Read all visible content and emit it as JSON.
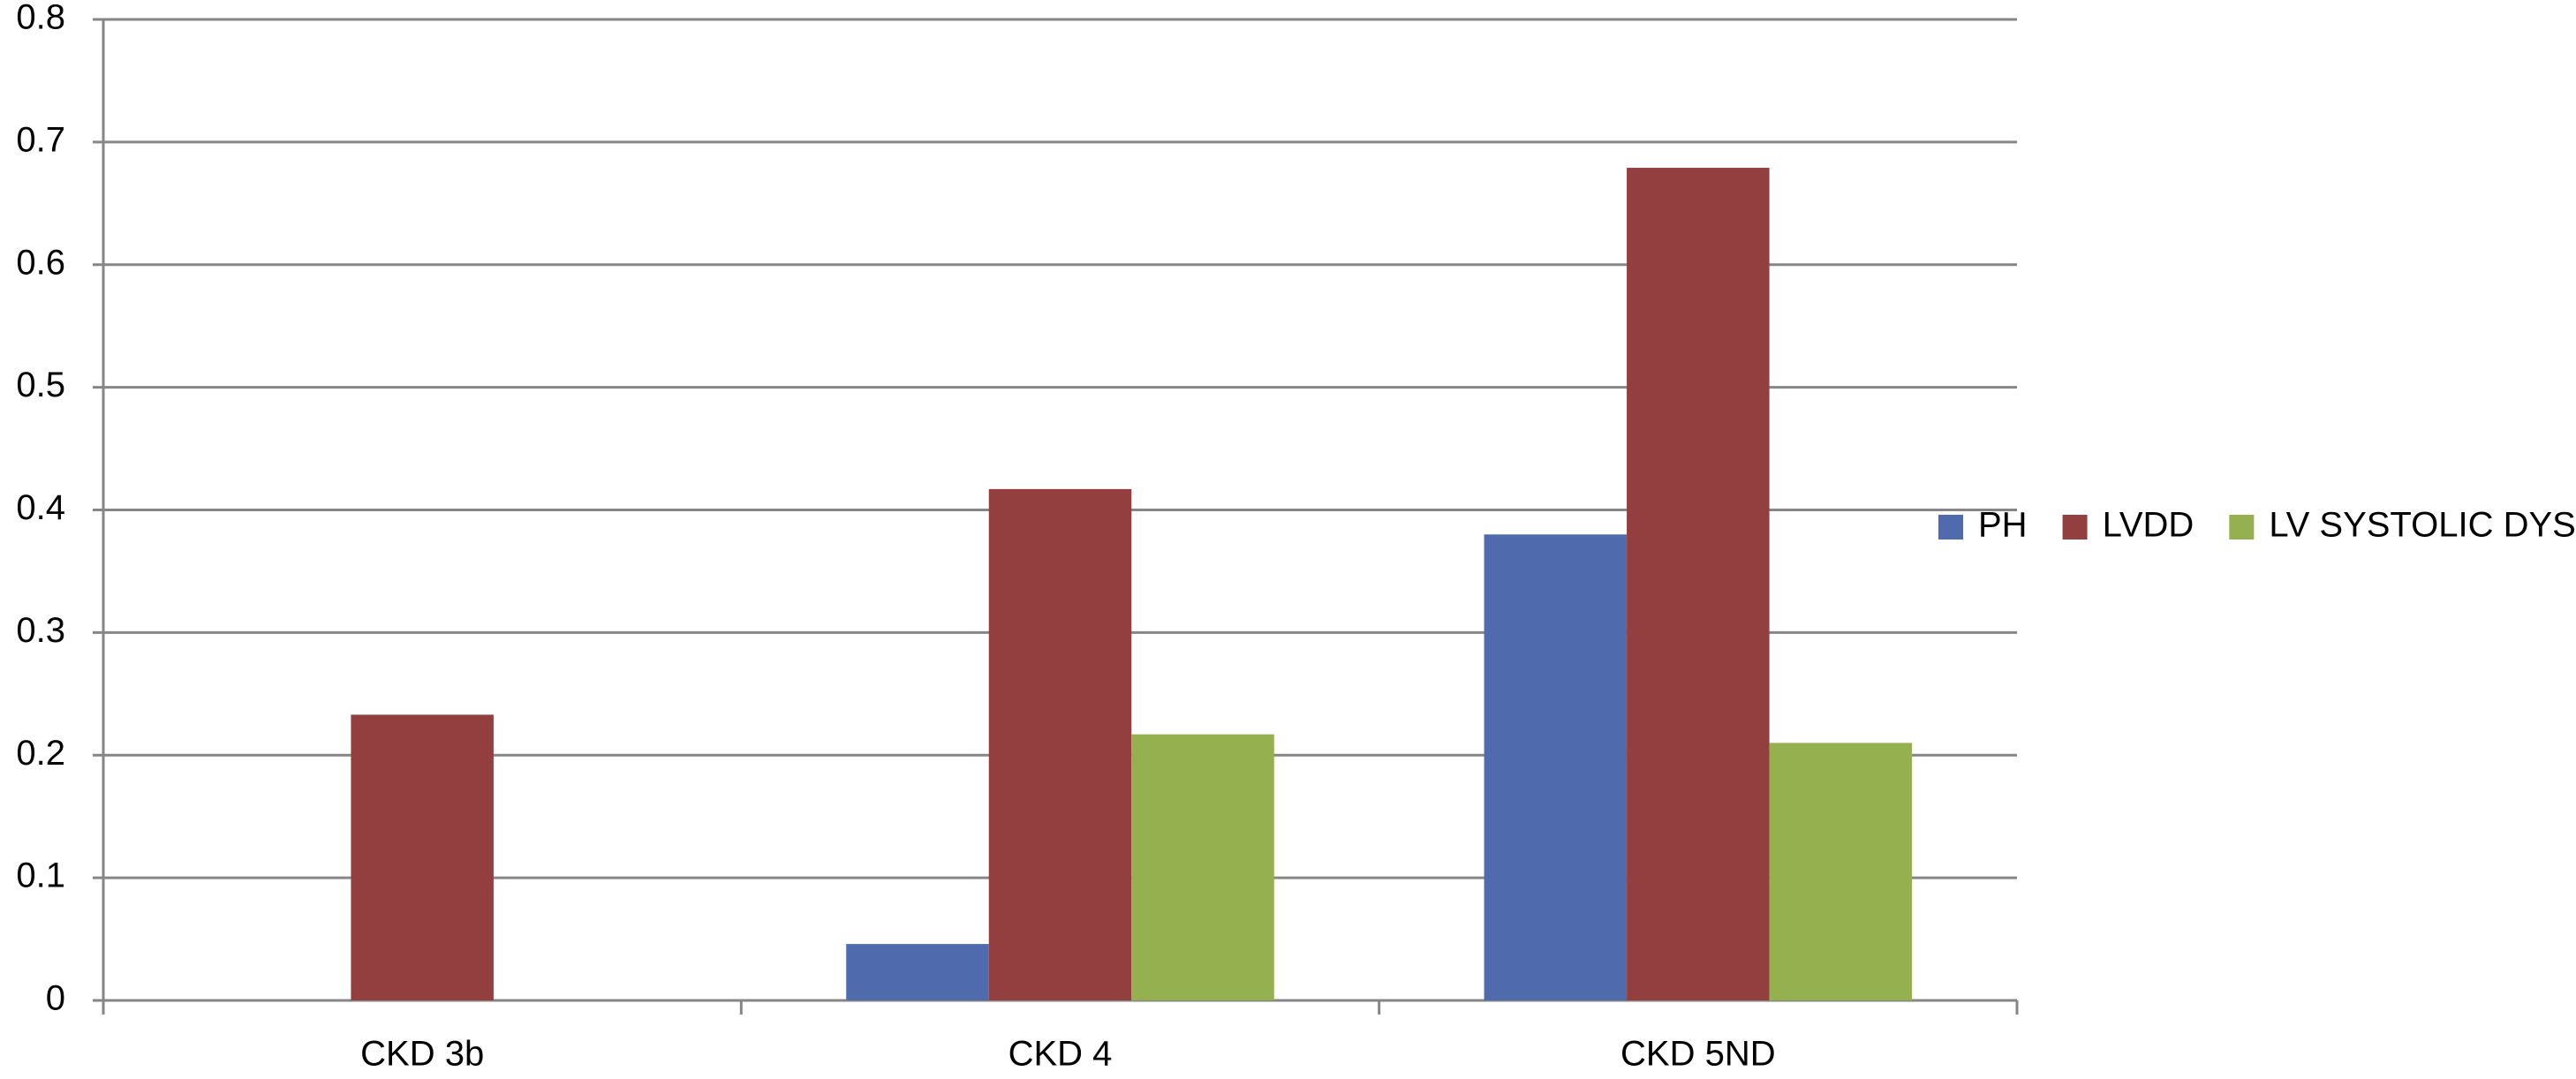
{
  "chart_data": {
    "type": "bar",
    "categories": [
      "CKD 3b",
      "CKD 4",
      "CKD 5ND"
    ],
    "series": [
      {
        "name": "PH",
        "color": "#4f6bad",
        "values": [
          0,
          0.046,
          0.38
        ]
      },
      {
        "name": "LVDD",
        "color": "#943f3f",
        "values": [
          0.233,
          0.417,
          0.679
        ]
      },
      {
        "name": "LV SYSTOLIC DYS",
        "color": "#95b14f",
        "values": [
          0,
          0.217,
          0.21
        ]
      }
    ],
    "ylim": [
      0,
      0.8
    ],
    "yticks": [
      0,
      0.1,
      0.2,
      0.3,
      0.4,
      0.5,
      0.6,
      0.7,
      0.8
    ],
    "grid": true,
    "legend": "right"
  }
}
